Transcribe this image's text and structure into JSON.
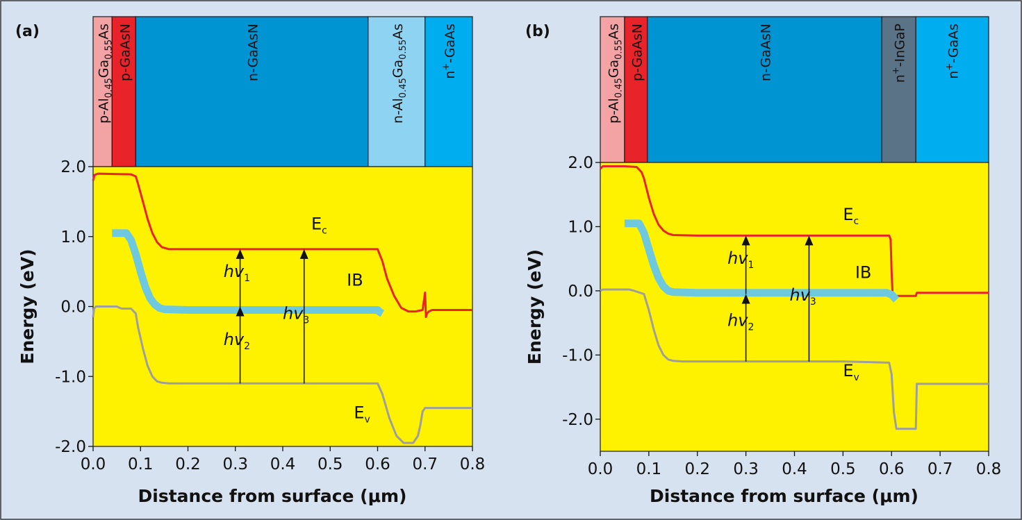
{
  "figure": {
    "background": "#d6e2ef",
    "border": "#3a3a3a"
  },
  "layer_colors": {
    "p-AlGaAs": "#f4a3a5",
    "p-GaAsN": "#e8232a",
    "n-GaAsN": "#0094d3",
    "n-AlGaAs": "#8fd3f2",
    "n+-InGaP": "#5a7386",
    "n+-GaAs": "#00aeef"
  },
  "colors": {
    "plot_bg": "#fff200",
    "Ec": "#e8232a",
    "IB": "#6ec9df",
    "Ev": "#9e9e9e",
    "arrow": "#111111"
  },
  "chart_data": [
    {
      "type": "line",
      "panel_label": "(a)",
      "xlabel": "Distance from surface (μm)",
      "ylabel": "Energy (eV)",
      "xlim": [
        0,
        0.8
      ],
      "ylim": [
        -2.0,
        2.0
      ],
      "xticks": [
        0.0,
        0.1,
        0.2,
        0.3,
        0.4,
        0.5,
        0.6,
        0.7,
        0.8
      ],
      "xtick_labels": [
        "0.0",
        "0.1",
        "0.2",
        "0.3",
        "0.4",
        "0.5",
        "0.6",
        "0.7",
        "0.8"
      ],
      "yticks": [
        2.0,
        1.0,
        0.0,
        -1.0,
        -2.0
      ],
      "ytick_labels": [
        "2.0",
        "1.0",
        "0.0",
        "-1.0",
        "-2.0"
      ],
      "layers": [
        {
          "type": "p-AlGaAs",
          "x0": 0.0,
          "x1": 0.04,
          "base": "p-Al",
          "sub1": "0.45",
          "mid": "Ga",
          "sub2": "0.55",
          "tail": "As"
        },
        {
          "type": "p-GaAsN",
          "x0": 0.04,
          "x1": 0.09,
          "base": "p-GaAsN"
        },
        {
          "type": "n-GaAsN",
          "x0": 0.09,
          "x1": 0.58,
          "base": "n-GaAsN"
        },
        {
          "type": "n-AlGaAs",
          "x0": 0.58,
          "x1": 0.7,
          "base": "n-Al",
          "sub1": "0.45",
          "mid": "Ga",
          "sub2": "0.55",
          "tail": "As"
        },
        {
          "type": "n+-GaAs",
          "x0": 0.7,
          "x1": 0.8,
          "base": "n",
          "sup": "+",
          "tail": "-GaAs"
        }
      ],
      "series": [
        {
          "key": "Ec",
          "x": [
            0.0,
            0.003,
            0.01,
            0.08,
            0.09,
            0.095,
            0.105,
            0.115,
            0.125,
            0.135,
            0.145,
            0.16,
            0.2,
            0.3,
            0.4,
            0.5,
            0.6,
            0.61,
            0.62,
            0.635,
            0.65,
            0.665,
            0.68,
            0.695,
            0.7,
            0.702,
            0.704,
            0.708,
            0.715,
            0.8
          ],
          "y": [
            1.8,
            1.88,
            1.9,
            1.89,
            1.86,
            1.75,
            1.5,
            1.25,
            1.05,
            0.92,
            0.85,
            0.82,
            0.82,
            0.82,
            0.82,
            0.82,
            0.82,
            0.65,
            0.4,
            0.15,
            -0.02,
            -0.07,
            -0.07,
            -0.05,
            0.2,
            -0.15,
            -0.1,
            -0.07,
            -0.05,
            -0.05
          ]
        },
        {
          "key": "IB",
          "x": [
            0.04,
            0.07,
            0.08,
            0.09,
            0.1,
            0.11,
            0.12,
            0.13,
            0.14,
            0.15,
            0.2,
            0.3,
            0.4,
            0.5,
            0.6,
            0.605,
            0.61
          ],
          "y": [
            1.05,
            1.05,
            0.95,
            0.75,
            0.5,
            0.28,
            0.12,
            0.03,
            -0.02,
            -0.04,
            -0.05,
            -0.05,
            -0.05,
            -0.05,
            -0.05,
            -0.08,
            -0.1
          ]
        },
        {
          "key": "Ev",
          "x": [
            0.0,
            0.002,
            0.006,
            0.05,
            0.06,
            0.08,
            0.09,
            0.095,
            0.105,
            0.115,
            0.125,
            0.135,
            0.145,
            0.16,
            0.2,
            0.3,
            0.4,
            0.5,
            0.6,
            0.61,
            0.625,
            0.64,
            0.655,
            0.665,
            0.675,
            0.685,
            0.69,
            0.695,
            0.7,
            0.8
          ],
          "y": [
            -0.15,
            -0.03,
            0.0,
            0.0,
            -0.03,
            -0.03,
            -0.1,
            -0.3,
            -0.6,
            -0.85,
            -1.0,
            -1.07,
            -1.09,
            -1.1,
            -1.1,
            -1.1,
            -1.1,
            -1.1,
            -1.1,
            -1.25,
            -1.6,
            -1.85,
            -1.95,
            -1.95,
            -1.95,
            -1.85,
            -1.7,
            -1.5,
            -1.45,
            -1.45
          ]
        }
      ],
      "arrows": [
        {
          "x": 0.31,
          "y0": -1.1,
          "y1": 0.0
        },
        {
          "x": 0.31,
          "y0": -0.05,
          "y1": 0.82
        },
        {
          "x": 0.445,
          "y0": -1.1,
          "y1": 0.82
        }
      ],
      "annotations": [
        {
          "base": "E",
          "sub": "c",
          "x": 0.46,
          "y": 1.1
        },
        {
          "base": "hv",
          "sub": "1",
          "x": 0.275,
          "y": 0.42
        },
        {
          "base": "IB",
          "x": 0.535,
          "y": 0.3
        },
        {
          "base": "hv",
          "sub": "3",
          "x": 0.4,
          "y": -0.18
        },
        {
          "base": "hv",
          "sub": "2",
          "x": 0.275,
          "y": -0.55
        },
        {
          "base": "E",
          "sub": "v",
          "x": 0.55,
          "y": -1.6
        }
      ]
    },
    {
      "type": "line",
      "panel_label": "(b)",
      "xlabel": "Distance from surface (μm)",
      "ylabel": "Energy (eV)",
      "xlim": [
        0,
        0.8
      ],
      "ylim": [
        -2.5,
        2.0
      ],
      "xticks": [
        0.0,
        0.1,
        0.2,
        0.3,
        0.4,
        0.5,
        0.6,
        0.7,
        0.8
      ],
      "xtick_labels": [
        "0.0",
        "0.1",
        "0.2",
        "0.3",
        "0.4",
        "0.5",
        "0.6",
        "0.7",
        "0.8"
      ],
      "yticks": [
        2.0,
        1.0,
        0.0,
        -1.0,
        -2.0
      ],
      "ytick_labels": [
        "2.0",
        "1.0",
        "0.0",
        "-1.0",
        "-2.0"
      ],
      "layers": [
        {
          "type": "p-AlGaAs",
          "x0": 0.0,
          "x1": 0.05,
          "base": "p-Al",
          "sub1": "0.45",
          "mid": "Ga",
          "sub2": "0.55",
          "tail": "As"
        },
        {
          "type": "p-GaAsN",
          "x0": 0.05,
          "x1": 0.097,
          "base": "p-GaAsN"
        },
        {
          "type": "n-GaAsN",
          "x0": 0.097,
          "x1": 0.58,
          "base": "n-GaAsN"
        },
        {
          "type": "n+-InGaP",
          "x0": 0.58,
          "x1": 0.65,
          "base": "n",
          "sup": "+",
          "tail": "-InGaP"
        },
        {
          "type": "n+-GaAs",
          "x0": 0.65,
          "x1": 0.8,
          "base": "n",
          "sup": "+",
          "tail": "-GaAs"
        }
      ],
      "series": [
        {
          "key": "Ec",
          "x": [
            0.0,
            0.005,
            0.05,
            0.075,
            0.085,
            0.09,
            0.1,
            0.11,
            0.12,
            0.13,
            0.14,
            0.15,
            0.2,
            0.3,
            0.4,
            0.5,
            0.595,
            0.598,
            0.6,
            0.602,
            0.606,
            0.65,
            0.652,
            0.8
          ],
          "y": [
            1.9,
            1.94,
            1.94,
            1.93,
            1.85,
            1.75,
            1.45,
            1.2,
            1.03,
            0.94,
            0.89,
            0.87,
            0.86,
            0.86,
            0.86,
            0.86,
            0.86,
            0.8,
            0.3,
            -0.02,
            -0.08,
            -0.08,
            -0.03,
            -0.03
          ]
        },
        {
          "key": "IB",
          "x": [
            0.05,
            0.08,
            0.09,
            0.1,
            0.11,
            0.12,
            0.13,
            0.14,
            0.15,
            0.2,
            0.3,
            0.4,
            0.5,
            0.59,
            0.6,
            0.605,
            0.61
          ],
          "y": [
            1.05,
            1.05,
            0.9,
            0.65,
            0.4,
            0.2,
            0.07,
            0.0,
            -0.02,
            -0.03,
            -0.03,
            -0.03,
            -0.03,
            -0.03,
            -0.06,
            -0.1,
            -0.14
          ]
        },
        {
          "key": "Ev",
          "x": [
            0.0,
            0.005,
            0.06,
            0.07,
            0.09,
            0.1,
            0.11,
            0.12,
            0.13,
            0.14,
            0.15,
            0.17,
            0.2,
            0.3,
            0.4,
            0.5,
            0.595,
            0.6,
            0.605,
            0.61,
            0.65,
            0.652,
            0.8
          ],
          "y": [
            0.0,
            0.02,
            0.02,
            0.0,
            -0.05,
            -0.3,
            -0.6,
            -0.85,
            -1.0,
            -1.07,
            -1.09,
            -1.1,
            -1.1,
            -1.1,
            -1.1,
            -1.1,
            -1.12,
            -1.3,
            -1.9,
            -2.15,
            -2.15,
            -1.45,
            -1.45
          ]
        }
      ],
      "arrows": [
        {
          "x": 0.3,
          "y0": -1.1,
          "y1": -0.05
        },
        {
          "x": 0.3,
          "y0": -0.05,
          "y1": 0.86
        },
        {
          "x": 0.43,
          "y0": -1.1,
          "y1": 0.86
        }
      ],
      "annotations": [
        {
          "base": "E",
          "sub": "c",
          "x": 0.5,
          "y": 1.1
        },
        {
          "base": "hv",
          "sub": "1",
          "x": 0.262,
          "y": 0.42
        },
        {
          "base": "IB",
          "x": 0.525,
          "y": 0.2
        },
        {
          "base": "hv",
          "sub": "3",
          "x": 0.39,
          "y": -0.15
        },
        {
          "base": "hv",
          "sub": "2",
          "x": 0.262,
          "y": -0.55
        },
        {
          "base": "E",
          "sub": "v",
          "x": 0.5,
          "y": -1.33
        }
      ]
    }
  ]
}
